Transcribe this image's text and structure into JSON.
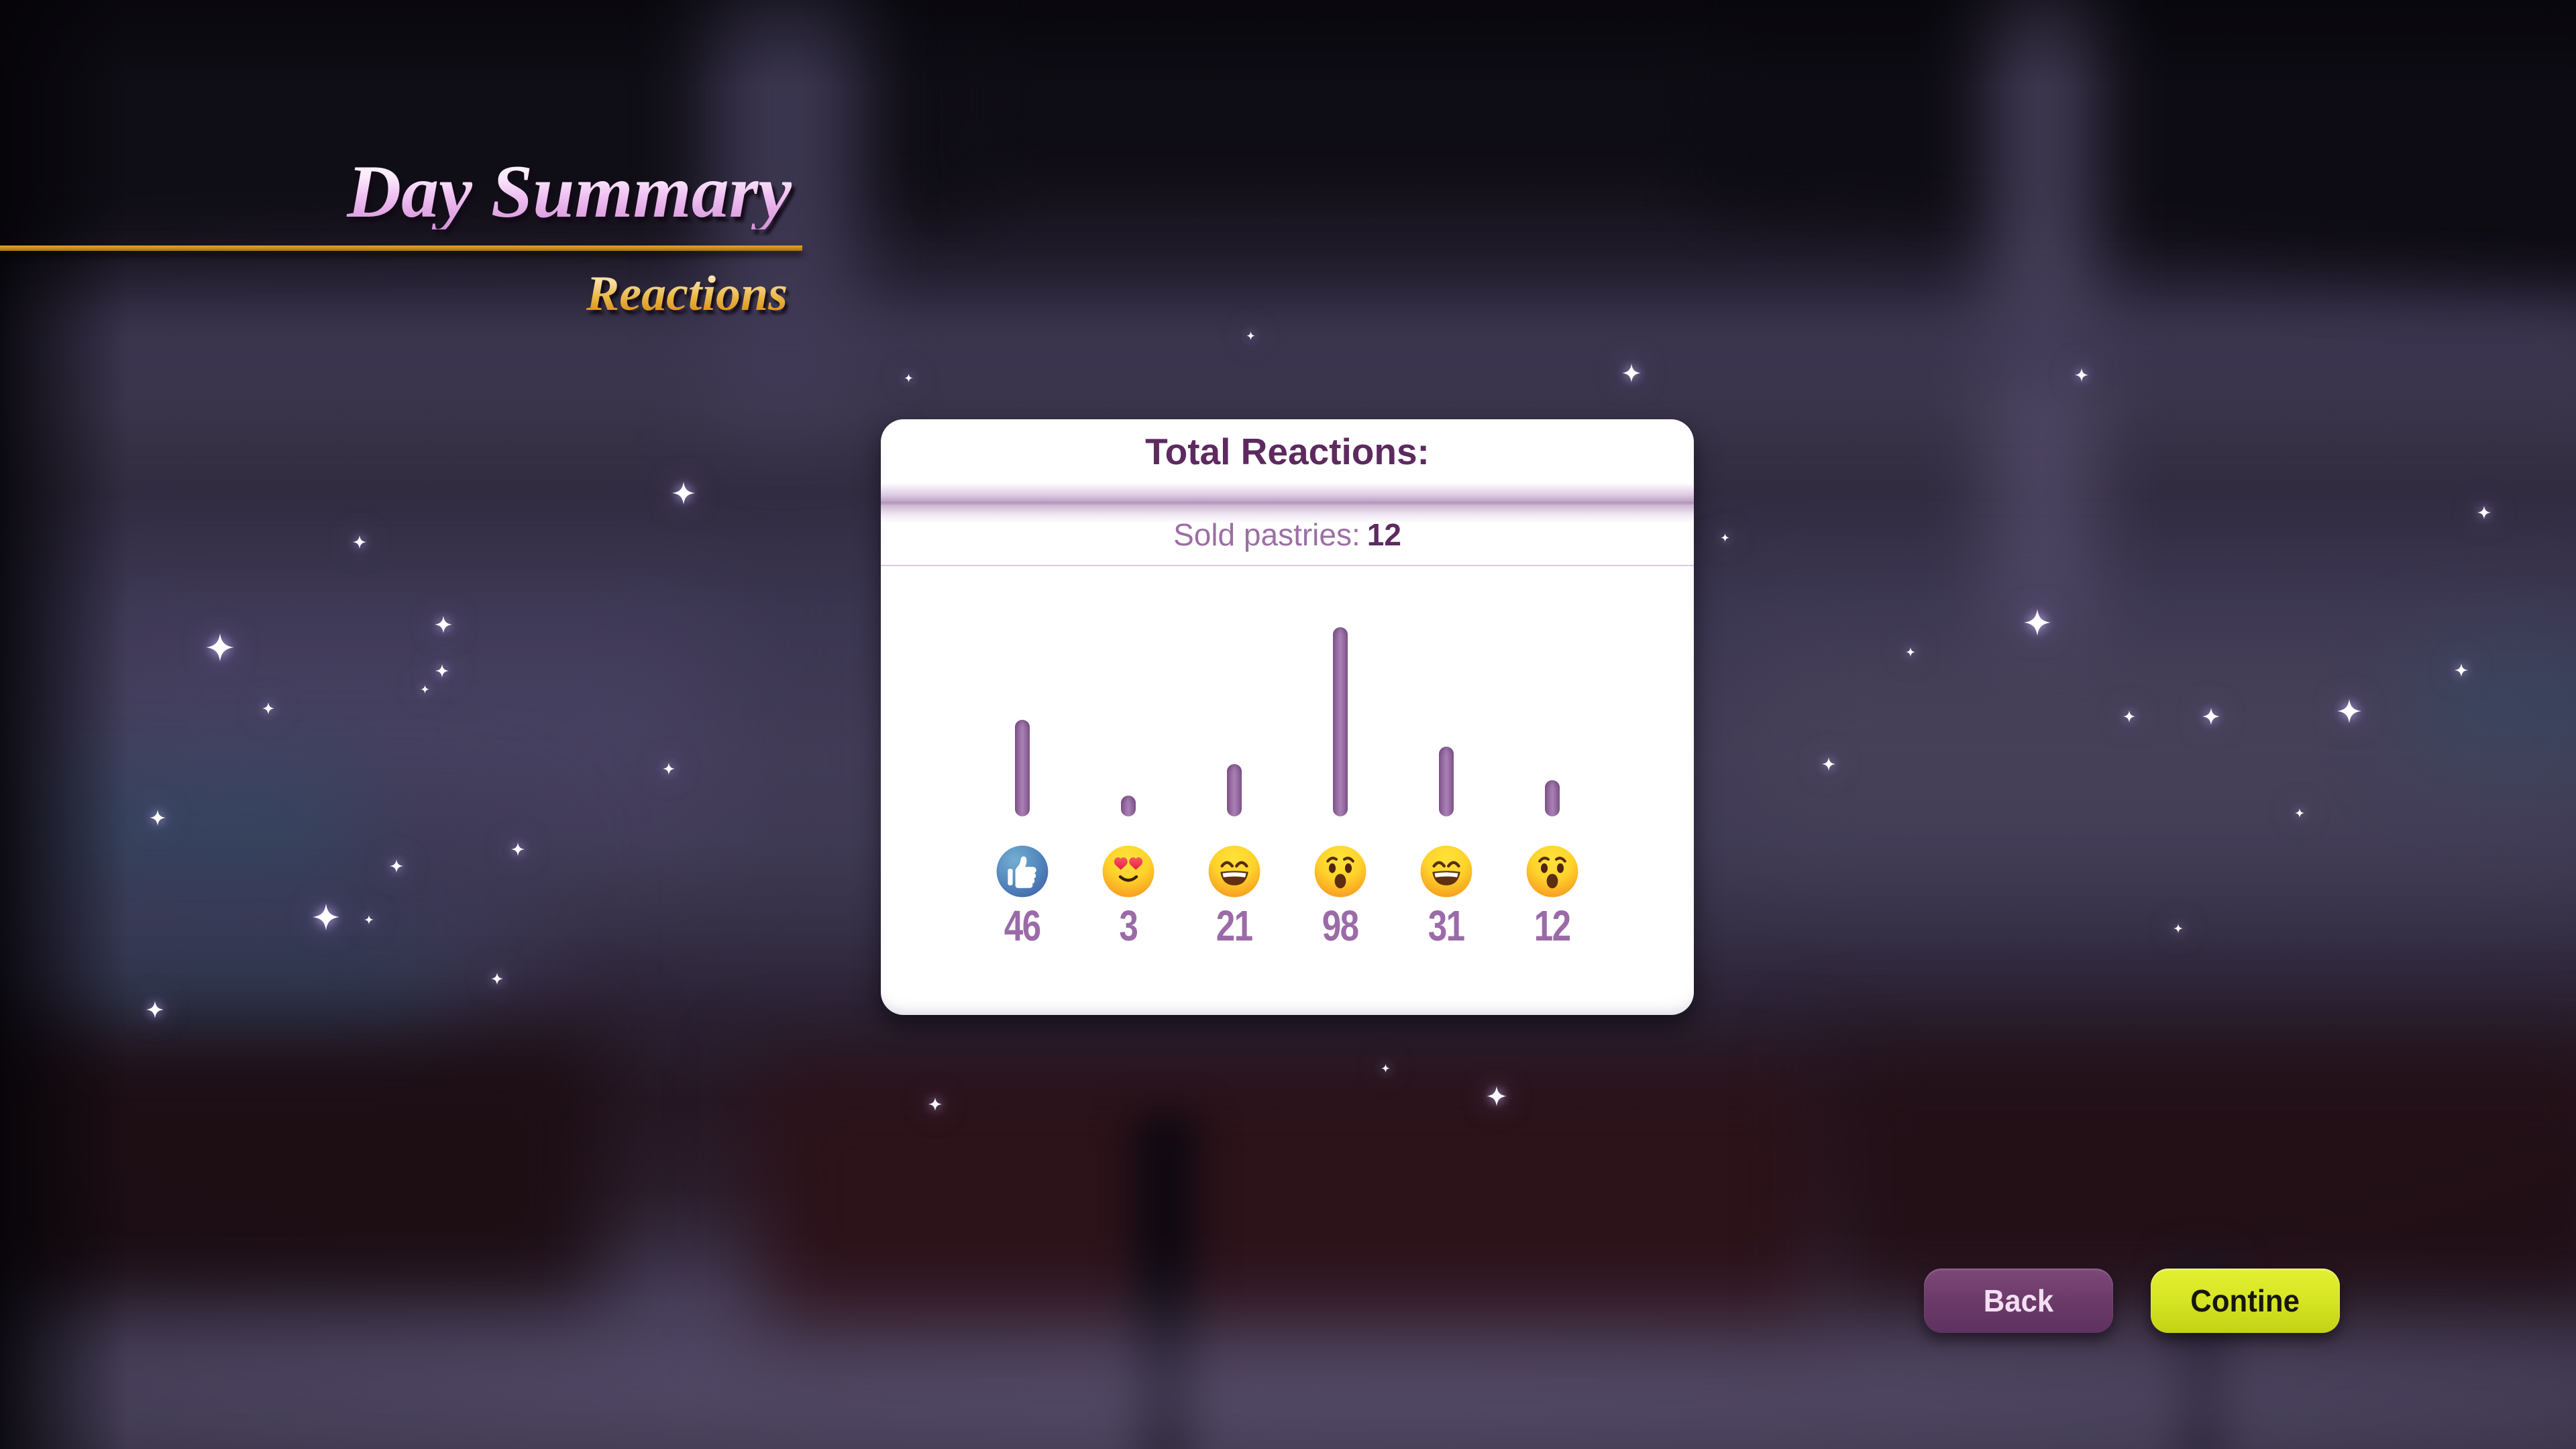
{
  "header": {
    "title": "Day Summary",
    "subtitle": "Reactions"
  },
  "card": {
    "title": "Total Reactions:",
    "sold_label": "Sold pastries:",
    "sold_value": "12"
  },
  "chart_data": {
    "type": "bar",
    "title": "Total Reactions:",
    "orientation": "vertical",
    "categories": [
      "like",
      "love",
      "haha",
      "wow",
      "haha",
      "wow"
    ],
    "values": [
      46,
      3,
      21,
      98,
      31,
      12
    ],
    "emoji_icons": [
      "thumbs-up-like-icon",
      "heart-eyes-love-icon",
      "laughing-haha-icon",
      "surprised-wow-icon",
      "laughing-haha-icon",
      "surprised-wow-icon"
    ],
    "bar_color": "#9c6fa8",
    "value_label_color": "#9b6ba8",
    "value_labels_shown": true
  },
  "buttons": {
    "back": "Back",
    "continue": "Contine"
  },
  "colors": {
    "card_title": "#5d2a5f",
    "sold_label": "#9c6fa5",
    "bar": "#9c6fa8",
    "count": "#9b6ba8",
    "underline_gold": "#c68a1e",
    "title_gradient_top": "#ffffff",
    "title_gradient_bottom": "#d592d9",
    "subtitle_gradient_top": "#fff6e0",
    "subtitle_gradient_bottom": "#cd851a",
    "back_button": "#6c3a69",
    "continue_button": "#d5e423"
  },
  "background": {
    "sparkles": [
      [
        1019,
        735,
        34
      ],
      [
        536,
        808,
        20
      ],
      [
        1354,
        563,
        13
      ],
      [
        1864,
        500,
        13
      ],
      [
        2432,
        556,
        28
      ],
      [
        3103,
        559,
        20
      ],
      [
        328,
        965,
        42
      ],
      [
        400,
        1056,
        18
      ],
      [
        661,
        931,
        26
      ],
      [
        659,
        1000,
        20
      ],
      [
        633,
        1027,
        13
      ],
      [
        235,
        1219,
        24
      ],
      [
        591,
        1291,
        20
      ],
      [
        772,
        1266,
        20
      ],
      [
        997,
        1146,
        18
      ],
      [
        486,
        1367,
        40
      ],
      [
        550,
        1371,
        14
      ],
      [
        231,
        1505,
        26
      ],
      [
        741,
        1459,
        18
      ],
      [
        1394,
        1646,
        20
      ],
      [
        2231,
        1634,
        30
      ],
      [
        2065,
        1592,
        13
      ],
      [
        2726,
        1139,
        20
      ],
      [
        2848,
        972,
        14
      ],
      [
        3037,
        928,
        40
      ],
      [
        3174,
        1068,
        18
      ],
      [
        3296,
        1068,
        26
      ],
      [
        3502,
        1060,
        36
      ],
      [
        3669,
        999,
        20
      ],
      [
        3428,
        1212,
        14
      ],
      [
        3703,
        764,
        20
      ],
      [
        3247,
        1384,
        14
      ],
      [
        2571,
        801,
        13
      ]
    ]
  }
}
